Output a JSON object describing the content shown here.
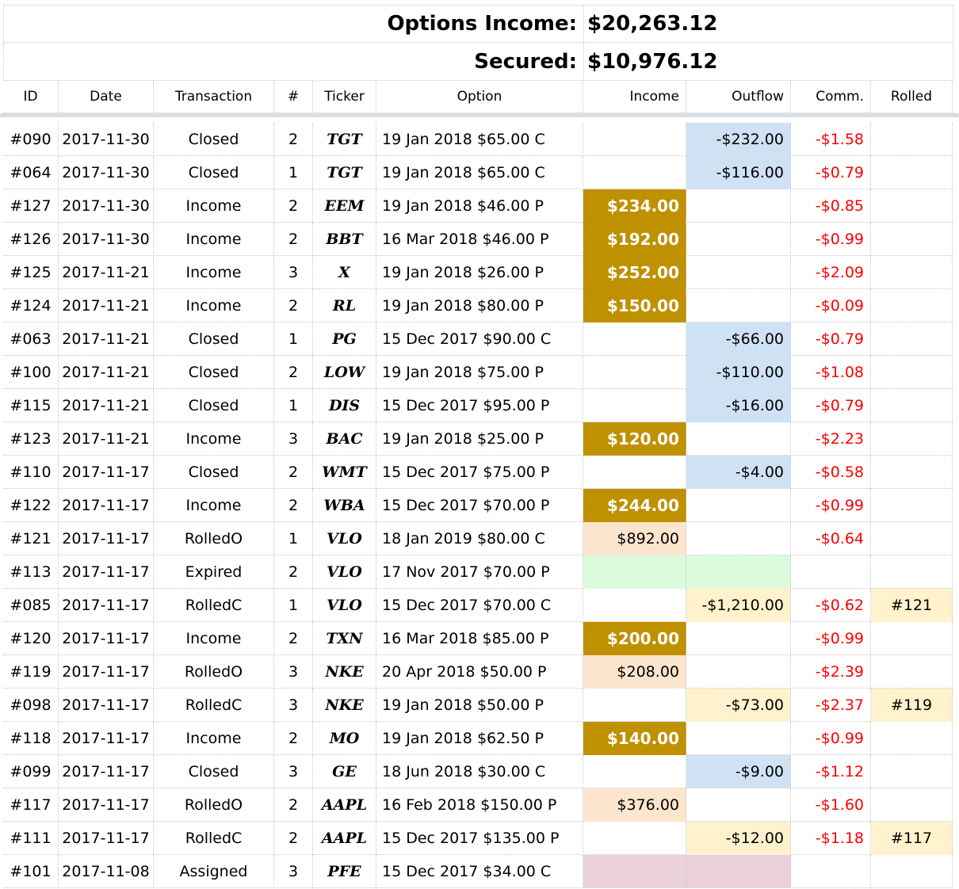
{
  "summary": {
    "income_label": "Options Income:",
    "income_value": "$20,263.12",
    "secured_label": "Secured:",
    "secured_value": "$10,976.12"
  },
  "columns": [
    "ID",
    "Date",
    "Transaction",
    "#",
    "Ticker",
    "Option",
    "Income",
    "Outflow",
    "Comm.",
    "Rolled"
  ],
  "colors": {
    "income_gold": "#bf9000",
    "income_peach": "#fce5cd",
    "expired_green": "#dcfbdc",
    "assigned_pink": "#ead1dc",
    "outflow_blue": "#cfe2f3",
    "rolled_yellow": "#fff2cc",
    "commission_red": "#ff0000"
  },
  "rows": [
    {
      "id": "#090",
      "date": "2017-11-30",
      "transaction": "Closed",
      "qty": "2",
      "ticker": "TGT",
      "option": "19 Jan 2018 $65.00 C",
      "income": "",
      "outflow": "-$232.00",
      "comm": "-$1.58",
      "rolled": "",
      "income_style": "",
      "outflow_style": "blue",
      "rolled_style": ""
    },
    {
      "id": "#064",
      "date": "2017-11-30",
      "transaction": "Closed",
      "qty": "1",
      "ticker": "TGT",
      "option": "19 Jan 2018 $65.00 C",
      "income": "",
      "outflow": "-$116.00",
      "comm": "-$0.79",
      "rolled": "",
      "income_style": "",
      "outflow_style": "blue",
      "rolled_style": ""
    },
    {
      "id": "#127",
      "date": "2017-11-30",
      "transaction": "Income",
      "qty": "2",
      "ticker": "EEM",
      "option": "19 Jan 2018 $46.00 P",
      "income": "$234.00",
      "outflow": "",
      "comm": "-$0.85",
      "rolled": "",
      "income_style": "gold",
      "outflow_style": "",
      "rolled_style": ""
    },
    {
      "id": "#126",
      "date": "2017-11-30",
      "transaction": "Income",
      "qty": "2",
      "ticker": "BBT",
      "option": "16 Mar 2018 $46.00 P",
      "income": "$192.00",
      "outflow": "",
      "comm": "-$0.99",
      "rolled": "",
      "income_style": "gold",
      "outflow_style": "",
      "rolled_style": ""
    },
    {
      "id": "#125",
      "date": "2017-11-21",
      "transaction": "Income",
      "qty": "3",
      "ticker": "X",
      "option": "19 Jan 2018 $26.00 P",
      "income": "$252.00",
      "outflow": "",
      "comm": "-$2.09",
      "rolled": "",
      "income_style": "gold",
      "outflow_style": "",
      "rolled_style": ""
    },
    {
      "id": "#124",
      "date": "2017-11-21",
      "transaction": "Income",
      "qty": "2",
      "ticker": "RL",
      "option": "19 Jan 2018 $80.00 P",
      "income": "$150.00",
      "outflow": "",
      "comm": "-$0.09",
      "rolled": "",
      "income_style": "gold",
      "outflow_style": "",
      "rolled_style": ""
    },
    {
      "id": "#063",
      "date": "2017-11-21",
      "transaction": "Closed",
      "qty": "1",
      "ticker": "PG",
      "option": "15 Dec 2017 $90.00 C",
      "income": "",
      "outflow": "-$66.00",
      "comm": "-$0.79",
      "rolled": "",
      "income_style": "",
      "outflow_style": "blue",
      "rolled_style": ""
    },
    {
      "id": "#100",
      "date": "2017-11-21",
      "transaction": "Closed",
      "qty": "2",
      "ticker": "LOW",
      "option": "19 Jan 2018 $75.00 P",
      "income": "",
      "outflow": "-$110.00",
      "comm": "-$1.08",
      "rolled": "",
      "income_style": "",
      "outflow_style": "blue",
      "rolled_style": ""
    },
    {
      "id": "#115",
      "date": "2017-11-21",
      "transaction": "Closed",
      "qty": "1",
      "ticker": "DIS",
      "option": "15 Dec 2017 $95.00 P",
      "income": "",
      "outflow": "-$16.00",
      "comm": "-$0.79",
      "rolled": "",
      "income_style": "",
      "outflow_style": "blue",
      "rolled_style": ""
    },
    {
      "id": "#123",
      "date": "2017-11-21",
      "transaction": "Income",
      "qty": "3",
      "ticker": "BAC",
      "option": "19 Jan 2018 $25.00 P",
      "income": "$120.00",
      "outflow": "",
      "comm": "-$2.23",
      "rolled": "",
      "income_style": "gold",
      "outflow_style": "",
      "rolled_style": ""
    },
    {
      "id": "#110",
      "date": "2017-11-17",
      "transaction": "Closed",
      "qty": "2",
      "ticker": "WMT",
      "option": "15 Dec 2017 $75.00 P",
      "income": "",
      "outflow": "-$4.00",
      "comm": "-$0.58",
      "rolled": "",
      "income_style": "",
      "outflow_style": "blue",
      "rolled_style": ""
    },
    {
      "id": "#122",
      "date": "2017-11-17",
      "transaction": "Income",
      "qty": "2",
      "ticker": "WBA",
      "option": "15 Dec 2017 $70.00 P",
      "income": "$244.00",
      "outflow": "",
      "comm": "-$0.99",
      "rolled": "",
      "income_style": "gold",
      "outflow_style": "",
      "rolled_style": ""
    },
    {
      "id": "#121",
      "date": "2017-11-17",
      "transaction": "RolledO",
      "qty": "1",
      "ticker": "VLO",
      "option": "18 Jan 2019 $80.00 C",
      "income": "$892.00",
      "outflow": "",
      "comm": "-$0.64",
      "rolled": "",
      "income_style": "peach",
      "outflow_style": "",
      "rolled_style": ""
    },
    {
      "id": "#113",
      "date": "2017-11-17",
      "transaction": "Expired",
      "qty": "2",
      "ticker": "VLO",
      "option": "17 Nov 2017 $70.00 P",
      "income": "",
      "outflow": "",
      "comm": "",
      "rolled": "",
      "income_style": "green",
      "outflow_style": "green",
      "rolled_style": ""
    },
    {
      "id": "#085",
      "date": "2017-11-17",
      "transaction": "RolledC",
      "qty": "1",
      "ticker": "VLO",
      "option": "15 Dec 2017 $70.00 C",
      "income": "",
      "outflow": "-$1,210.00",
      "comm": "-$0.62",
      "rolled": "#121",
      "income_style": "",
      "outflow_style": "yellow",
      "rolled_style": "yellow"
    },
    {
      "id": "#120",
      "date": "2017-11-17",
      "transaction": "Income",
      "qty": "2",
      "ticker": "TXN",
      "option": "16 Mar 2018 $85.00 P",
      "income": "$200.00",
      "outflow": "",
      "comm": "-$0.99",
      "rolled": "",
      "income_style": "gold",
      "outflow_style": "",
      "rolled_style": ""
    },
    {
      "id": "#119",
      "date": "2017-11-17",
      "transaction": "RolledO",
      "qty": "3",
      "ticker": "NKE",
      "option": "20 Apr 2018 $50.00 P",
      "income": "$208.00",
      "outflow": "",
      "comm": "-$2.39",
      "rolled": "",
      "income_style": "peach",
      "outflow_style": "",
      "rolled_style": ""
    },
    {
      "id": "#098",
      "date": "2017-11-17",
      "transaction": "RolledC",
      "qty": "3",
      "ticker": "NKE",
      "option": "19 Jan 2018 $50.00 P",
      "income": "",
      "outflow": "-$73.00",
      "comm": "-$2.37",
      "rolled": "#119",
      "income_style": "",
      "outflow_style": "yellow",
      "rolled_style": "yellow"
    },
    {
      "id": "#118",
      "date": "2017-11-17",
      "transaction": "Income",
      "qty": "2",
      "ticker": "MO",
      "option": "19 Jan 2018 $62.50 P",
      "income": "$140.00",
      "outflow": "",
      "comm": "-$0.99",
      "rolled": "",
      "income_style": "gold",
      "outflow_style": "",
      "rolled_style": ""
    },
    {
      "id": "#099",
      "date": "2017-11-17",
      "transaction": "Closed",
      "qty": "3",
      "ticker": "GE",
      "option": "18 Jun 2018 $30.00 C",
      "income": "",
      "outflow": "-$9.00",
      "comm": "-$1.12",
      "rolled": "",
      "income_style": "",
      "outflow_style": "blue",
      "rolled_style": ""
    },
    {
      "id": "#117",
      "date": "2017-11-17",
      "transaction": "RolledO",
      "qty": "2",
      "ticker": "AAPL",
      "option": "16 Feb 2018 $150.00 P",
      "income": "$376.00",
      "outflow": "",
      "comm": "-$1.60",
      "rolled": "",
      "income_style": "peach",
      "outflow_style": "",
      "rolled_style": ""
    },
    {
      "id": "#111",
      "date": "2017-11-17",
      "transaction": "RolledC",
      "qty": "2",
      "ticker": "AAPL",
      "option": "15 Dec 2017 $135.00 P",
      "income": "",
      "outflow": "-$12.00",
      "comm": "-$1.18",
      "rolled": "#117",
      "income_style": "",
      "outflow_style": "yellow",
      "rolled_style": "yellow"
    },
    {
      "id": "#101",
      "date": "2017-11-08",
      "transaction": "Assigned",
      "qty": "3",
      "ticker": "PFE",
      "option": "15 Dec 2017 $34.00 C",
      "income": "",
      "outflow": "",
      "comm": "",
      "rolled": "",
      "income_style": "pink",
      "outflow_style": "pink",
      "rolled_style": ""
    }
  ]
}
